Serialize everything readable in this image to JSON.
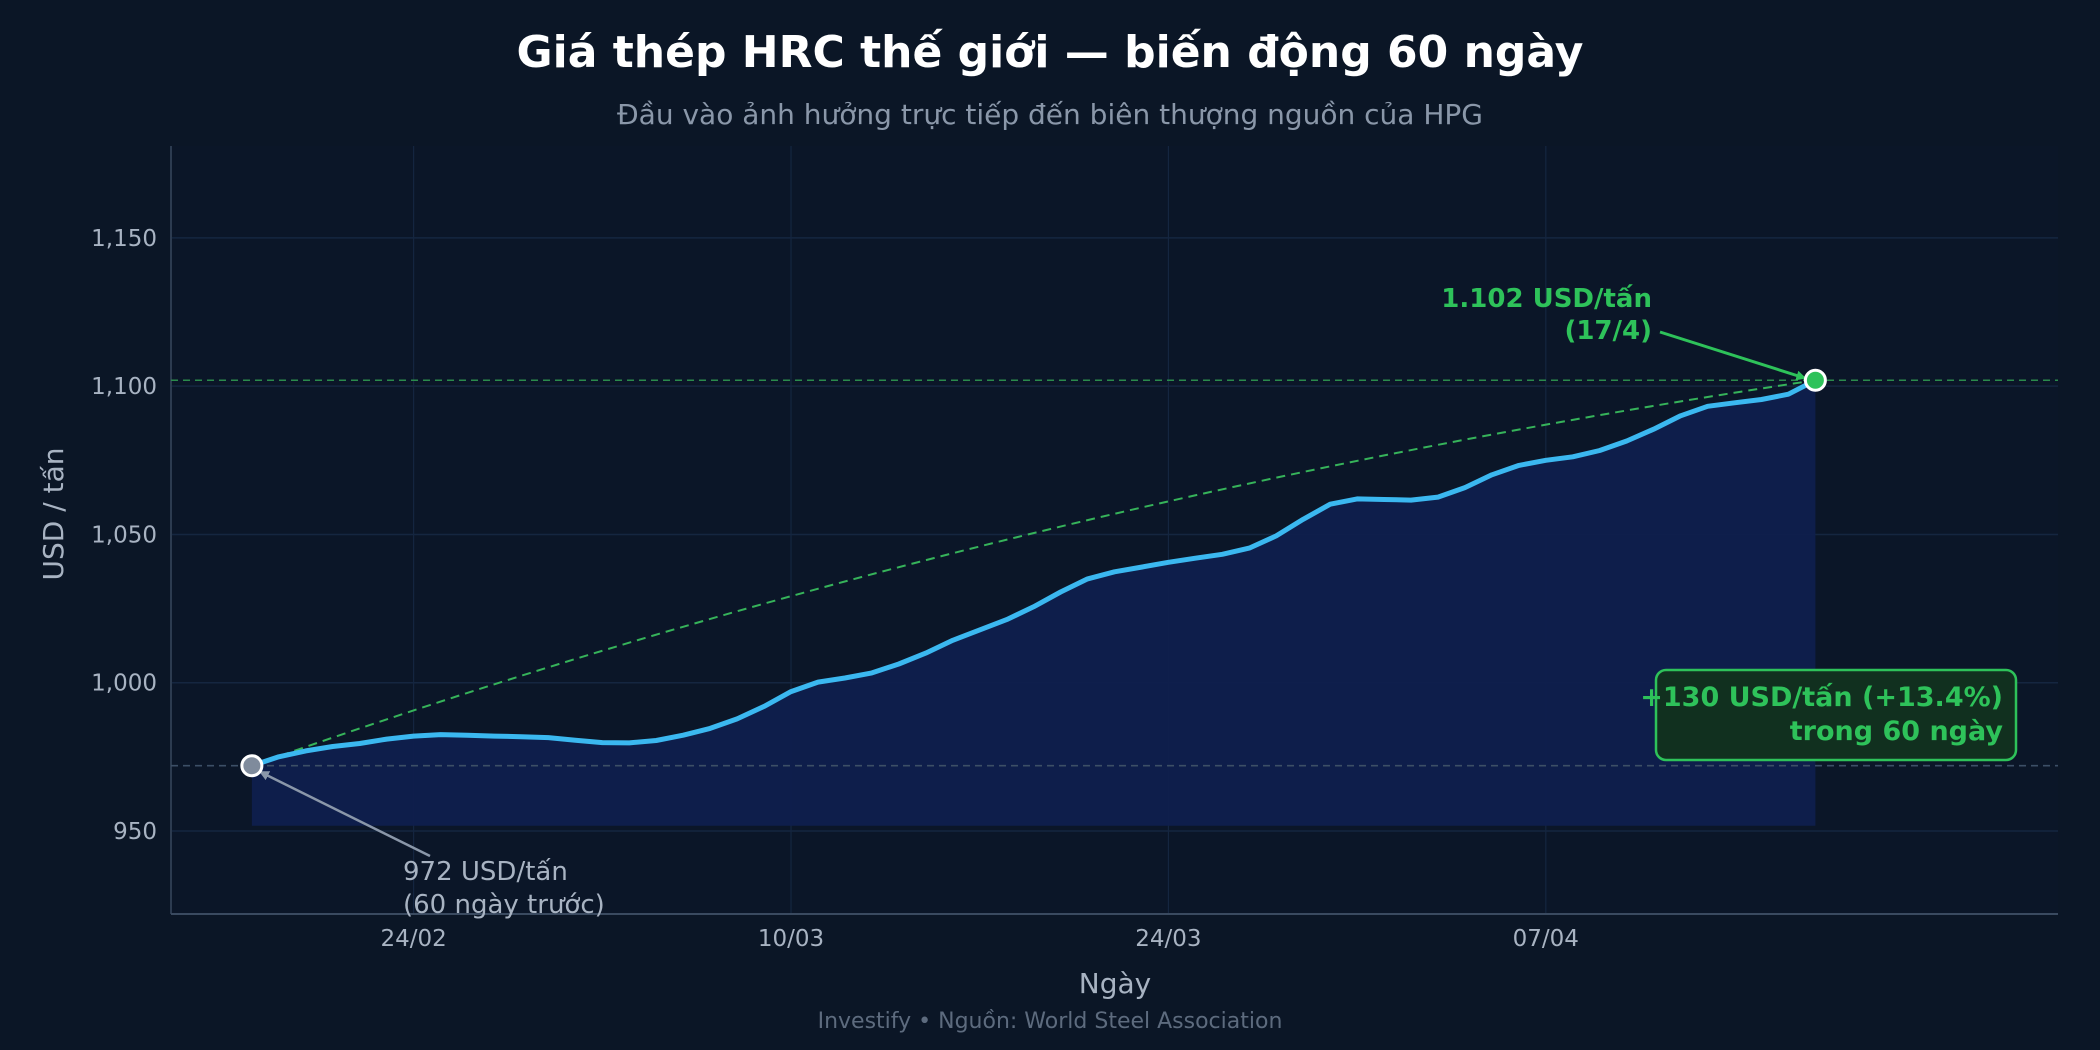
{
  "chart_data": {
    "type": "line",
    "title": "Giá thép HRC thế giới — biến động 60 ngày",
    "subtitle": "Đầu vào ảnh hưởng trực tiếp đến biên thượng nguồn của HPG",
    "xlabel": "Ngày",
    "ylabel": "USD / tấn",
    "ylim": [
      922,
      1181
    ],
    "yticks": [
      950,
      1000,
      1050,
      1100,
      1150
    ],
    "ytick_labels": [
      "950",
      "1,000",
      "1,050",
      "1,100",
      "1,150"
    ],
    "x_range": [
      "2026-02-15",
      "2026-04-26"
    ],
    "xticks": [
      "2026-02-24",
      "2026-03-10",
      "2026-03-24",
      "2026-04-07"
    ],
    "xtick_labels": [
      "24/02",
      "10/03",
      "24/03",
      "07/04"
    ],
    "grid": true,
    "series": [
      {
        "color": "#3bb8f0",
        "x": [
          "2026-02-18",
          "2026-02-19",
          "2026-02-20",
          "2026-02-21",
          "2026-02-22",
          "2026-02-23",
          "2026-02-24",
          "2026-02-25",
          "2026-02-26",
          "2026-02-27",
          "2026-02-28",
          "2026-03-01",
          "2026-03-02",
          "2026-03-03",
          "2026-03-04",
          "2026-03-05",
          "2026-03-06",
          "2026-03-07",
          "2026-03-08",
          "2026-03-09",
          "2026-03-10",
          "2026-03-11",
          "2026-03-12",
          "2026-03-13",
          "2026-03-14",
          "2026-03-15",
          "2026-03-16",
          "2026-03-17",
          "2026-03-18",
          "2026-03-19",
          "2026-03-20",
          "2026-03-21",
          "2026-03-22",
          "2026-03-23",
          "2026-03-24",
          "2026-03-25",
          "2026-03-26",
          "2026-03-27",
          "2026-03-28",
          "2026-03-29",
          "2026-03-30",
          "2026-03-31",
          "2026-04-01",
          "2026-04-02",
          "2026-04-03",
          "2026-04-04",
          "2026-04-05",
          "2026-04-06",
          "2026-04-07",
          "2026-04-08",
          "2026-04-09",
          "2026-04-10",
          "2026-04-11",
          "2026-04-12",
          "2026-04-13",
          "2026-04-14",
          "2026-04-15",
          "2026-04-16",
          "2026-04-17"
        ],
        "values": [
          972,
          975,
          977,
          978.5,
          979.5,
          981,
          982,
          982.5,
          982.3,
          982,
          981.8,
          981.5,
          980.6,
          979.8,
          979.7,
          980.5,
          982.3,
          984.6,
          987.8,
          992,
          997,
          1000.2,
          1001.6,
          1003.3,
          1006.3,
          1010,
          1014.3,
          1017.8,
          1021.3,
          1025.6,
          1030.6,
          1035,
          1037.4,
          1039,
          1040.6,
          1042,
          1043.3,
          1045.4,
          1049.5,
          1055.1,
          1060.2,
          1062,
          1061.8,
          1061.6,
          1062.6,
          1065.8,
          1070.1,
          1073.3,
          1075,
          1076.2,
          1078.3,
          1081.5,
          1085.5,
          1090,
          1093.2,
          1094.4,
          1095.5,
          1097.3,
          1102
        ]
      }
    ],
    "trend_line": {
      "from": [
        "2026-02-18",
        972
      ],
      "to": [
        "2026-04-17",
        1102
      ],
      "color": "#36b35a"
    },
    "reference_lines": [
      {
        "y": 1102,
        "color": "#2b8a4c"
      },
      {
        "y": 972,
        "color": "#3c4f66"
      }
    ],
    "annotations": [
      {
        "id": "end",
        "text_lines": [
          "1.102 USD/tấn",
          "(17/4)"
        ],
        "point": [
          "2026-04-17",
          1102
        ],
        "color": "#2ec25a"
      },
      {
        "id": "start",
        "text_lines": [
          "972 USD/tấn",
          "(60 ngày trước)"
        ],
        "point": [
          "2026-02-18",
          972
        ],
        "color": "#a8b3c2"
      }
    ],
    "badge": {
      "lines": [
        "+130 USD/tấn  (+13.4%)",
        "trong 60 ngày"
      ],
      "color": "#2ec25a"
    },
    "footer": "Investify  •  Nguồn: World Steel Association",
    "colors": {
      "background": "#0b1626",
      "plot_background": "#0b1628",
      "fill": "#0f1f4d",
      "grid": "#152640"
    }
  }
}
